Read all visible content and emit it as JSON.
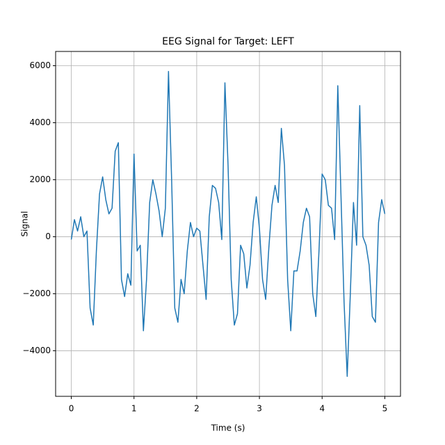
{
  "chart_data": {
    "type": "line",
    "title": "EEG Signal for Target: LEFT",
    "xlabel": "Time (s)",
    "ylabel": "Signal",
    "x": [
      0,
      0.05,
      0.1,
      0.15,
      0.2,
      0.25,
      0.3,
      0.35,
      0.4,
      0.45,
      0.5,
      0.55,
      0.6,
      0.65,
      0.7,
      0.75,
      0.8,
      0.85,
      0.9,
      0.95,
      1,
      1.05,
      1.1,
      1.15,
      1.2,
      1.25,
      1.3,
      1.35,
      1.4,
      1.45,
      1.5,
      1.55,
      1.6,
      1.65,
      1.7,
      1.75,
      1.8,
      1.85,
      1.9,
      1.95,
      2,
      2.05,
      2.1,
      2.15,
      2.2,
      2.25,
      2.3,
      2.35,
      2.4,
      2.45,
      2.5,
      2.55,
      2.6,
      2.65,
      2.7,
      2.75,
      2.8,
      2.85,
      2.9,
      2.95,
      3,
      3.05,
      3.1,
      3.15,
      3.2,
      3.25,
      3.3,
      3.35,
      3.4,
      3.45,
      3.5,
      3.55,
      3.6,
      3.65,
      3.7,
      3.75,
      3.8,
      3.85,
      3.9,
      3.95,
      4,
      4.05,
      4.1,
      4.15,
      4.2,
      4.25,
      4.3,
      4.35,
      4.4,
      4.45,
      4.5,
      4.55,
      4.6,
      4.65,
      4.7,
      4.75,
      4.8,
      4.85,
      4.9,
      4.95,
      5
    ],
    "series": [
      {
        "name": "Signal",
        "color": "#1f77b4",
        "values": [
          -100,
          600,
          200,
          700,
          0,
          200,
          -2500,
          -3100,
          -500,
          1500,
          2100,
          1300,
          800,
          1000,
          3000,
          3300,
          -1500,
          -2100,
          -1300,
          -1700,
          2900,
          -500,
          -300,
          -3300,
          -1500,
          1200,
          2000,
          1500,
          900,
          0,
          1000,
          5800,
          2000,
          -2500,
          -3000,
          -1500,
          -2000,
          -500,
          500,
          0,
          300,
          200,
          -1000,
          -2200,
          700,
          1800,
          1700,
          1200,
          -100,
          5400,
          2500,
          -1500,
          -3100,
          -2700,
          -300,
          -600,
          -1800,
          -1000,
          500,
          1400,
          300,
          -1500,
          -2200,
          -400,
          1100,
          1800,
          1200,
          3800,
          2500,
          -1500,
          -3300,
          -1200,
          -1200,
          -500,
          500,
          1000,
          700,
          -2000,
          -2800,
          -500,
          2200,
          2000,
          1100,
          1000,
          -100,
          5300,
          1500,
          -2300,
          -4900,
          -2000,
          1200,
          -300,
          4600,
          0,
          -300,
          -1000,
          -2800,
          -3000,
          500,
          1300,
          800
        ]
      }
    ],
    "xlim": [
      -0.25,
      5.25
    ],
    "ylim": [
      -5600,
      6500
    ],
    "xticks": [
      0,
      1,
      2,
      3,
      4,
      5
    ],
    "yticks": [
      {
        "value": -4000,
        "label": "−4000"
      },
      {
        "value": -2000,
        "label": "−2000"
      },
      0,
      2000,
      4000,
      6000
    ],
    "grid": true
  }
}
